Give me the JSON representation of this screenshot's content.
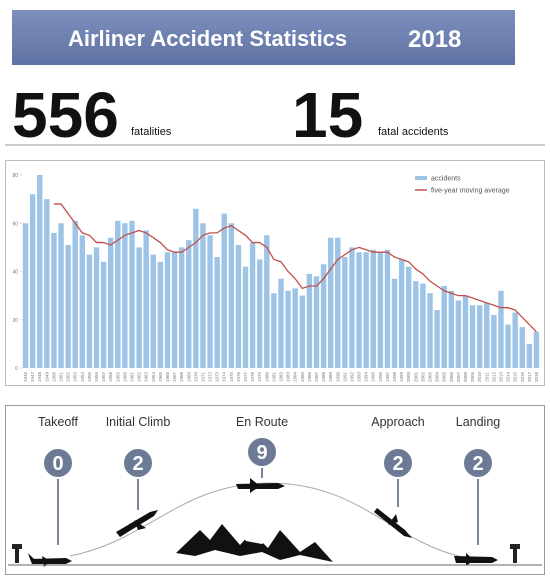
{
  "header": {
    "title": "Airliner Accident Statistics",
    "year": "2018"
  },
  "stats": [
    {
      "value": "556",
      "label": "fatalities"
    },
    {
      "value": "15",
      "label": "fatal accidents"
    }
  ],
  "chart_data": {
    "type": "bar",
    "categories": [
      "1946",
      "1947",
      "1948",
      "1949",
      "1950",
      "1951",
      "1952",
      "1953",
      "1954",
      "1955",
      "1956",
      "1957",
      "1958",
      "1959",
      "1960",
      "1961",
      "1962",
      "1963",
      "1964",
      "1965",
      "1966",
      "1967",
      "1968",
      "1969",
      "1970",
      "1971",
      "1972",
      "1973",
      "1974",
      "1975",
      "1976",
      "1977",
      "1978",
      "1979",
      "1980",
      "1981",
      "1982",
      "1983",
      "1984",
      "1985",
      "1986",
      "1987",
      "1988",
      "1989",
      "1990",
      "1991",
      "1992",
      "1993",
      "1994",
      "1995",
      "1996",
      "1997",
      "1998",
      "1999",
      "2000",
      "2001",
      "2002",
      "2003",
      "2004",
      "2005",
      "2006",
      "2007",
      "2008",
      "2009",
      "2010",
      "2011",
      "2012",
      "2013",
      "2014",
      "2015",
      "2016",
      "2017",
      "2018"
    ],
    "series": [
      {
        "name": "accidents",
        "color": "#9dc3e6",
        "type": "bar",
        "values": [
          60,
          72,
          80,
          70,
          56,
          60,
          51,
          61,
          55,
          47,
          50,
          44,
          54,
          61,
          60,
          61,
          50,
          57,
          47,
          44,
          48,
          48,
          50,
          53,
          66,
          60,
          55,
          46,
          64,
          60,
          51,
          42,
          52,
          45,
          55,
          31,
          37,
          32,
          33,
          30,
          39,
          38,
          43,
          54,
          54,
          46,
          50,
          48,
          48,
          49,
          48,
          49,
          37,
          45,
          42,
          36,
          35,
          31,
          24,
          34,
          32,
          28,
          30,
          26,
          26,
          27,
          22,
          32,
          18,
          23,
          17,
          10,
          15
        ]
      },
      {
        "name": "five-year moving average",
        "color": "#c0504d",
        "type": "line",
        "values": [
          null,
          null,
          null,
          null,
          68,
          68,
          64,
          60,
          56,
          55,
          52,
          52,
          51,
          53,
          55,
          56,
          57,
          56,
          54,
          52,
          49,
          48,
          48,
          50,
          52,
          55,
          56,
          56,
          58,
          59,
          57,
          55,
          52,
          52,
          50,
          45,
          44,
          40,
          37,
          33,
          34,
          34,
          37,
          41,
          45,
          47,
          49,
          50,
          49,
          48,
          48,
          48,
          46,
          45,
          44,
          41,
          39,
          36,
          34,
          32,
          31,
          30,
          30,
          29,
          28,
          27,
          26,
          25,
          25,
          24,
          21,
          18,
          15
        ]
      }
    ],
    "ylim": [
      0,
      80
    ],
    "yticks": [
      0,
      20,
      40,
      60,
      80
    ],
    "grid": false,
    "legend": "top-right"
  },
  "phases": [
    {
      "name": "Takeoff",
      "count": "0"
    },
    {
      "name": "Initial Climb",
      "count": "2"
    },
    {
      "name": "En Route",
      "count": "9"
    },
    {
      "name": "Approach",
      "count": "2"
    },
    {
      "name": "Landing",
      "count": "2"
    }
  ]
}
